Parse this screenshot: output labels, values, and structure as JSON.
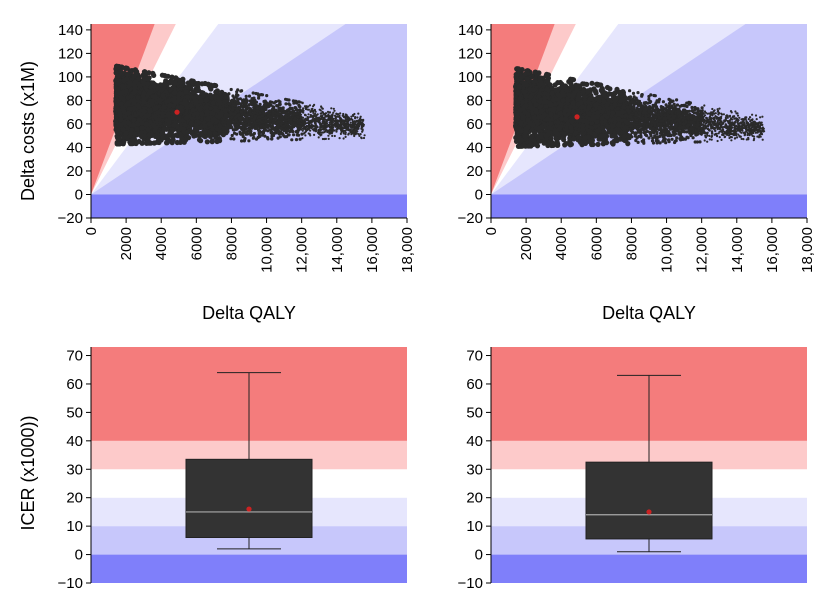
{
  "colors": {
    "red_strong": "#f47c7c",
    "red_light": "#fdcaca",
    "white_band": "#ffffff",
    "blue_pale": "#e6e6fd",
    "blue_light": "#c7c7fb",
    "blue_strong": "#7f7ffa",
    "cloud": "#2a2a2a",
    "mean_dot": "#cc2222",
    "box_fill": "#333333",
    "median_line": "#aaaaaa"
  },
  "chart_data": [
    {
      "type": "scatter",
      "panel": "top-left",
      "xlabel": "Delta QALY",
      "ylabel": "Delta costs (x1M)",
      "xlim": [
        0,
        18000
      ],
      "ylim": [
        -20,
        145
      ],
      "x_ticks": [
        0,
        2000,
        4000,
        6000,
        8000,
        10000,
        12000,
        14000,
        16000,
        18000
      ],
      "x_tick_labels": [
        "0",
        "2000",
        "4000",
        "6000",
        "8000",
        "10,000",
        "12,000",
        "14,000",
        "16,000",
        "18,000"
      ],
      "y_ticks": [
        -20,
        0,
        20,
        40,
        60,
        80,
        100,
        120,
        140
      ],
      "y_tick_labels": [
        "−20",
        "0",
        "20",
        "40",
        "60",
        "80",
        "100",
        "120",
        "140"
      ],
      "icer_thresholds_per_qaly_x1000": [
        10,
        20,
        30,
        40
      ],
      "cloud": {
        "x_range": [
          1500,
          15500
        ],
        "y_center_at_start": 76,
        "y_center_at_end": 58,
        "y_half_spread_at_start": 33,
        "y_half_spread_at_end": 10
      },
      "mean_point": {
        "x": 4900,
        "y": 70
      }
    },
    {
      "type": "scatter",
      "panel": "top-right",
      "xlabel": "Delta QALY",
      "ylabel": "",
      "xlim": [
        0,
        18000
      ],
      "ylim": [
        -20,
        145
      ],
      "x_ticks": [
        0,
        2000,
        4000,
        6000,
        8000,
        10000,
        12000,
        14000,
        16000,
        18000
      ],
      "x_tick_labels": [
        "0",
        "2000",
        "4000",
        "6000",
        "8000",
        "10,000",
        "12,000",
        "14,000",
        "16,000",
        "18,000"
      ],
      "y_ticks": [
        -20,
        0,
        20,
        40,
        60,
        80,
        100,
        120,
        140
      ],
      "y_tick_labels": [
        "−20",
        "0",
        "20",
        "40",
        "60",
        "80",
        "100",
        "120",
        "140"
      ],
      "icer_thresholds_per_qaly_x1000": [
        10,
        20,
        30,
        40
      ],
      "cloud": {
        "x_range": [
          1500,
          15500
        ],
        "y_center_at_start": 74,
        "y_center_at_end": 56,
        "y_half_spread_at_start": 33,
        "y_half_spread_at_end": 10
      },
      "mean_point": {
        "x": 4900,
        "y": 66
      }
    },
    {
      "type": "box",
      "panel": "bottom-left",
      "ylabel": "ICER (x1000))",
      "ylim": [
        -10,
        73
      ],
      "y_ticks": [
        -10,
        0,
        10,
        20,
        30,
        40,
        50,
        60,
        70
      ],
      "y_tick_labels": [
        "−10",
        "0",
        "10",
        "20",
        "30",
        "40",
        "50",
        "60",
        "70"
      ],
      "bands": [
        {
          "from": -10,
          "to": 0,
          "color": "blue_strong"
        },
        {
          "from": 0,
          "to": 10,
          "color": "blue_light"
        },
        {
          "from": 10,
          "to": 20,
          "color": "blue_pale"
        },
        {
          "from": 20,
          "to": 30,
          "color": "white_band"
        },
        {
          "from": 30,
          "to": 40,
          "color": "red_light"
        },
        {
          "from": 40,
          "to": 73,
          "color": "red_strong"
        }
      ],
      "box": {
        "whisker_low": 2,
        "q1": 6,
        "median": 15,
        "q3": 33.5,
        "whisker_high": 64,
        "mean": 16
      }
    },
    {
      "type": "box",
      "panel": "bottom-right",
      "ylabel": "",
      "ylim": [
        -10,
        73
      ],
      "y_ticks": [
        -10,
        0,
        10,
        20,
        30,
        40,
        50,
        60,
        70
      ],
      "y_tick_labels": [
        "−10",
        "0",
        "10",
        "20",
        "30",
        "40",
        "50",
        "60",
        "70"
      ],
      "bands": [
        {
          "from": -10,
          "to": 0,
          "color": "blue_strong"
        },
        {
          "from": 0,
          "to": 10,
          "color": "blue_light"
        },
        {
          "from": 10,
          "to": 20,
          "color": "blue_pale"
        },
        {
          "from": 20,
          "to": 30,
          "color": "white_band"
        },
        {
          "from": 30,
          "to": 40,
          "color": "red_light"
        },
        {
          "from": 40,
          "to": 73,
          "color": "red_strong"
        }
      ],
      "box": {
        "whisker_low": 1,
        "q1": 5.5,
        "median": 14,
        "q3": 32.5,
        "whisker_high": 63,
        "mean": 15
      }
    }
  ]
}
